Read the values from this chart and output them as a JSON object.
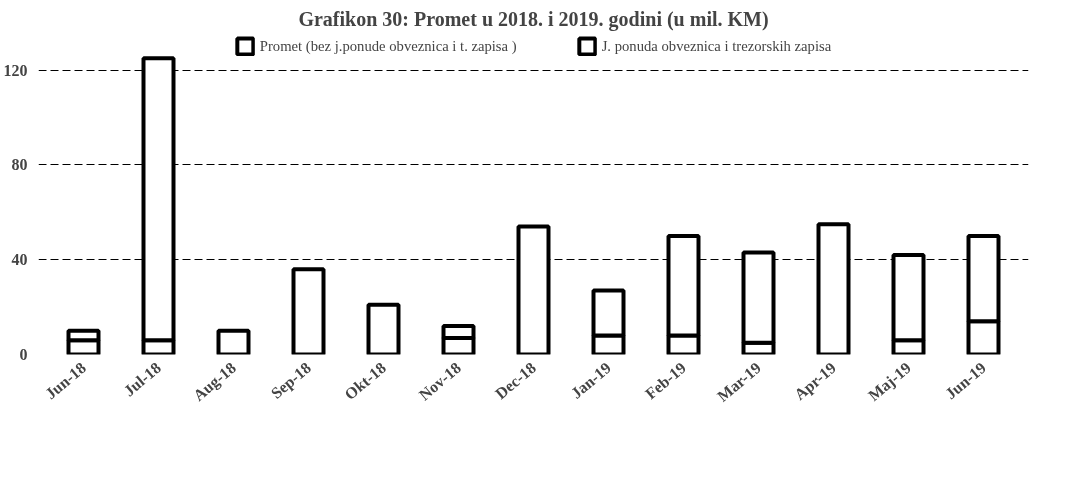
{
  "chart_data": {
    "type": "bar",
    "stacked": true,
    "title": "Grafikon 30: Promet u 2018. i 2019. godini (u mil. KM)",
    "categories": [
      "Jun-18",
      "Jul-18",
      "Aug-18",
      "Sep-18",
      "Okt-18",
      "Nov-18",
      "Dec-18",
      "Jan-19",
      "Feb-19",
      "Mar-19",
      "Apr-19",
      "Maj-19",
      "Jun-19"
    ],
    "series": [
      {
        "name": "Promet (bez j.ponude obveznica i t. zapisa )",
        "color": "#ffffff",
        "values": [
          6,
          6,
          10,
          36,
          21,
          7,
          54,
          8,
          8,
          5,
          55,
          6,
          14
        ]
      },
      {
        "name": "J. ponuda obveznica i trezorskih zapisa",
        "color": "#ffffff",
        "values": [
          4,
          119,
          null,
          null,
          null,
          5,
          null,
          19,
          42,
          38,
          null,
          36,
          36
        ]
      }
    ],
    "ylim": [
      0,
      135
    ],
    "yticks": [
      0,
      40,
      80,
      120
    ],
    "grid": "y",
    "legend": "top"
  }
}
